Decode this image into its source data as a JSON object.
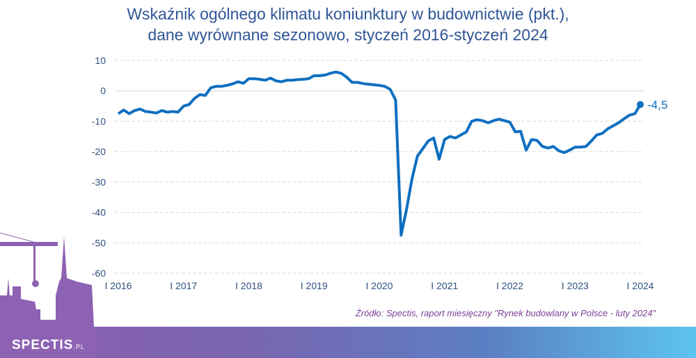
{
  "chart_data": {
    "type": "line",
    "title": "Wskaźnik ogólnego klimatu koniunktury w budownictwie (pkt.),",
    "subtitle": "dane wyrównane sezonowo, styczeń 2016-styczeń 2024",
    "xlabel": "",
    "ylabel": "",
    "ylim": [
      -60,
      10
    ],
    "yticks": [
      "10",
      "0",
      "-10",
      "-20",
      "-30",
      "-40",
      "-50",
      "-60"
    ],
    "ytick_values": [
      10,
      0,
      -10,
      -20,
      -30,
      -40,
      -50,
      -60
    ],
    "xticks": [
      "I 2016",
      "I 2017",
      "I 2018",
      "I 2019",
      "I 2020",
      "I 2021",
      "I 2022",
      "I 2023",
      "I 2024"
    ],
    "x_start": "2016-01",
    "x_end": "2024-01",
    "grid": true,
    "series": [
      {
        "name": "Wskaźnik ogólnego klimatu koniunktury",
        "color": "#0f6fc0",
        "values": [
          -7.5,
          -6.3,
          -7.5,
          -6.5,
          -6,
          -6.8,
          -7,
          -7.3,
          -6.5,
          -7,
          -6.8,
          -7,
          -5,
          -4.5,
          -2.5,
          -1.2,
          -1.5,
          1,
          1.5,
          1.5,
          1.8,
          2.3,
          3,
          2.5,
          4,
          4,
          3.8,
          3.5,
          4.2,
          3.3,
          3,
          3.5,
          3.5,
          3.7,
          3.8,
          4,
          5,
          5,
          5.2,
          5.8,
          6.2,
          5.8,
          4.5,
          2.8,
          2.8,
          2.4,
          2.2,
          2.0,
          1.8,
          1.5,
          0.5,
          -3,
          -47.5,
          -39,
          -29,
          -21.5,
          -19,
          -16.5,
          -15.5,
          -22.5,
          -16,
          -15,
          -15.5,
          -14.5,
          -13.5,
          -10,
          -9.5,
          -9.8,
          -10.5,
          -9.8,
          -9.3,
          -9.8,
          -10.3,
          -13.5,
          -13.3,
          -19.5,
          -16,
          -16.3,
          -18.3,
          -18.8,
          -18.3,
          -19.7,
          -20.3,
          -19.5,
          -18.5,
          -18.5,
          -18.3,
          -16.5,
          -14.5,
          -14,
          -12.5,
          -11.5,
          -10.5,
          -9.2,
          -8,
          -7.5,
          -4.5
        ]
      }
    ],
    "last_value_label": "-4,5",
    "source": "Źródło: Spectis, raport miesięczny \"Rynek budowlany w Polsce - luty 2024\""
  },
  "brand": {
    "logo": "SPECTIS",
    "logo_suffix": ".PL",
    "purple": "#8b5fb0",
    "blue": "#5cc4ee"
  }
}
